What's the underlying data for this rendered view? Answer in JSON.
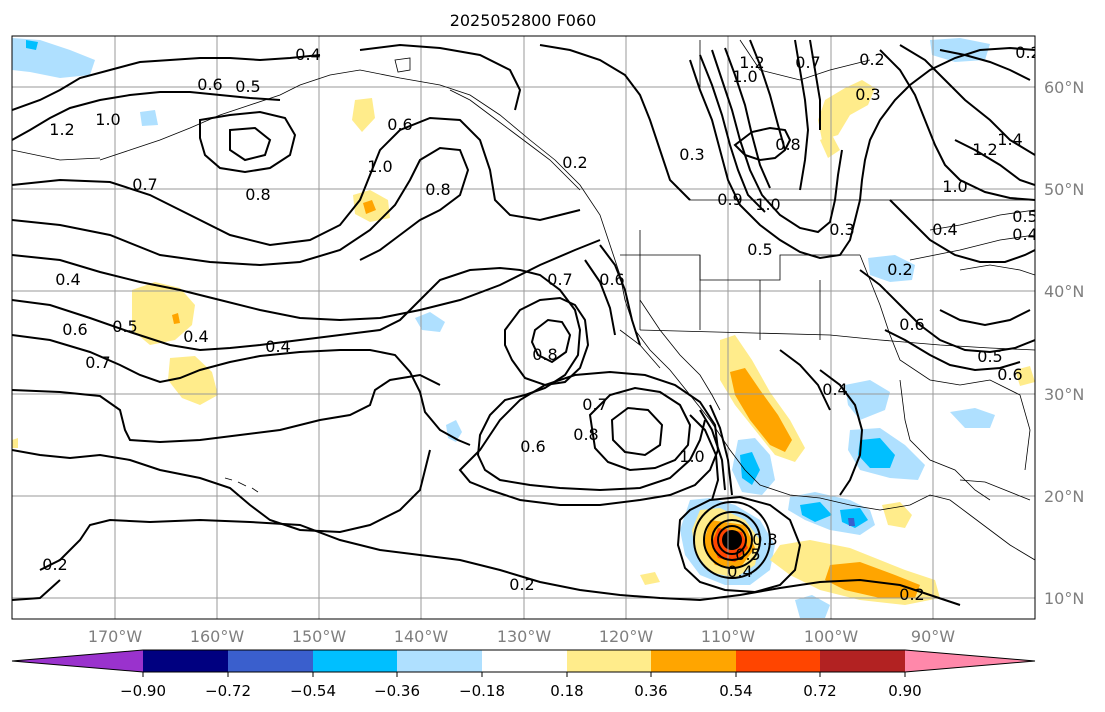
{
  "title": "2025052800 F060",
  "lon_labels": [
    "170°W",
    "160°W",
    "150°W",
    "140°W",
    "130°W",
    "120°W",
    "110°W",
    "100°W",
    "90°W"
  ],
  "lat_labels": [
    "60°N",
    "50°N",
    "40°N",
    "30°N",
    "20°N",
    "10°N"
  ],
  "colorbar": {
    "tick_labels": [
      "−0.90",
      "−0.72",
      "−0.54",
      "−0.36",
      "−0.18",
      "0.18",
      "0.36",
      "0.54",
      "0.72",
      "0.90"
    ],
    "colors": [
      "#9a32cd",
      "#000080",
      "#3a5fcd",
      "#00bfff",
      "#afe0ff",
      "#ffffff",
      "#ffec8b",
      "#ffa500",
      "#ff4500",
      "#b22222",
      "#ff88aa"
    ]
  },
  "contour_labels": [
    "0.4",
    "0.6",
    "0.5",
    "1.0",
    "1.2",
    "0.7",
    "0.8",
    "0.6",
    "1.0",
    "0.8",
    "0.2",
    "0.3",
    "1.2",
    "1.0",
    "0.7",
    "0.9",
    "0.8",
    "1.0",
    "0.5",
    "0.3",
    "0.2",
    "0.3",
    "1.2",
    "1.4",
    "1.0",
    "0.4",
    "0.2",
    "0.4",
    "0.6",
    "0.5",
    "0.7",
    "0.4",
    "0.4",
    "0.5",
    "0.7",
    "0.6",
    "0.8",
    "0.6",
    "0.8",
    "1.0",
    "0.7",
    "0.6",
    "0.4",
    "0.2",
    "0.4",
    "0.5",
    "0.6",
    "0.2",
    "0.2",
    "0.4",
    "0.5",
    "0.3",
    "0.2"
  ]
}
